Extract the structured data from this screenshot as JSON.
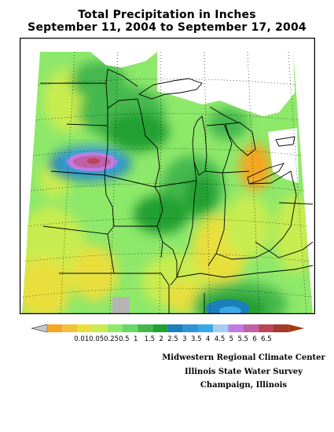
{
  "title": {
    "line1": "Total Precipitation in Inches",
    "line2": "September 11, 2004 to September 17, 2004"
  },
  "legend": {
    "labels": [
      "0.01",
      "0.05",
      "0.25",
      "0.5",
      "1",
      "1.5",
      "2",
      "2.5",
      "3",
      "3.5",
      "4",
      "4.5",
      "5",
      "5.5",
      "6",
      "6.5"
    ],
    "label_strip": "0.010.050.250.5  1   1.5  2  2.5  3  3.5  4  4.5  5  5.5  6  6.5",
    "colors": [
      "#f5a623",
      "#f2c23a",
      "#e8df3e",
      "#c8ec50",
      "#8ee86a",
      "#67d867",
      "#44b84d",
      "#22a032",
      "#1b7fb8",
      "#2f93d6",
      "#3aa8e8",
      "#a6cdf0",
      "#c27be0",
      "#c060a8",
      "#b8475a",
      "#a53a2a"
    ],
    "end_left_color": "#c8c8c8",
    "end_right_color": "#a53a0f"
  },
  "credits": {
    "line1": "Midwestern Regional Climate Center",
    "line2": "Illinois State Water Survey",
    "line3": "Champaign, Illinois"
  },
  "map_colors": {
    "frame": "#000000",
    "no_data": "#ffffff",
    "trace": "#f5a623",
    "low": "#e8df3e",
    "light": "#c8ec50",
    "mid": "#8ee86a",
    "mid2": "#67d867",
    "green": "#44b84d",
    "dark_green": "#22a032",
    "blue": "#1b7fb8",
    "blue2": "#3aa8e8",
    "lavender": "#c27be0",
    "pink": "#c060a8",
    "red": "#b8475a",
    "gray": "#b4b4b4"
  }
}
